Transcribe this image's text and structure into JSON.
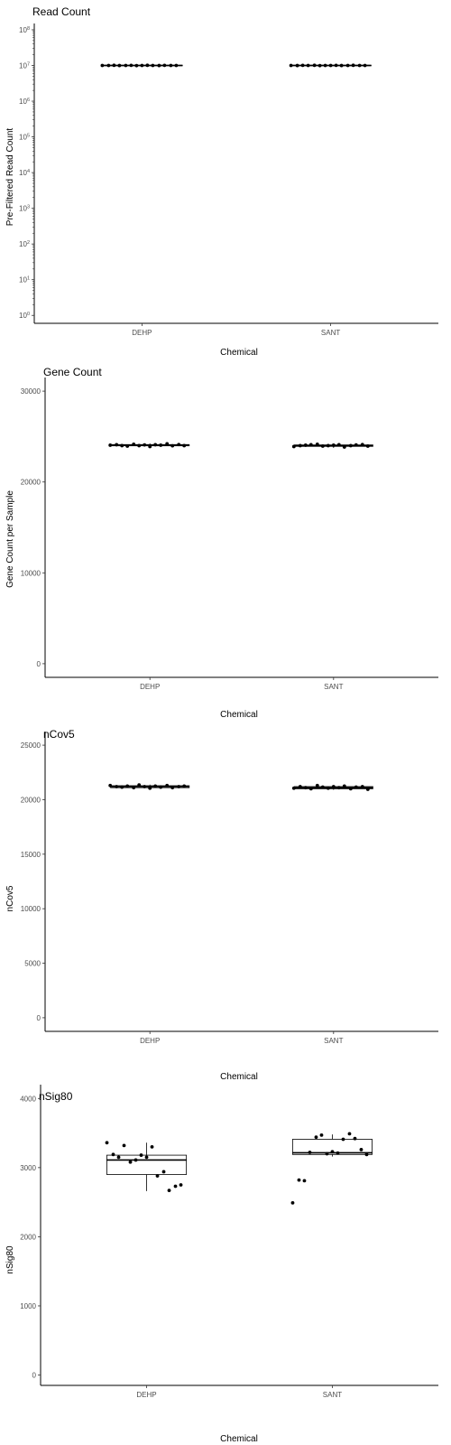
{
  "chart_data": [
    {
      "type": "box",
      "title": "Read Count",
      "xlabel": "Chemical",
      "ylabel": "Pre-Filtered Read Count",
      "categories": [
        "DEHP",
        "SANT"
      ],
      "y_scale": "log10",
      "ylim": [
        0.6,
        150000000
      ],
      "yticks": [
        1,
        10,
        100,
        1000,
        10000,
        100000,
        1000000,
        10000000,
        100000000
      ],
      "ytick_labels": [
        {
          "base": "10",
          "exp": "0"
        },
        {
          "base": "10",
          "exp": "1"
        },
        {
          "base": "10",
          "exp": "2"
        },
        {
          "base": "10",
          "exp": "3"
        },
        {
          "base": "10",
          "exp": "4"
        },
        {
          "base": "10",
          "exp": "5"
        },
        {
          "base": "10",
          "exp": "6"
        },
        {
          "base": "10",
          "exp": "7"
        },
        {
          "base": "10",
          "exp": "8"
        }
      ],
      "boxes": [
        {
          "min": 9500000,
          "q1": 9800000,
          "median": 10000000,
          "q3": 10200000,
          "max": 10500000
        },
        {
          "min": 9500000,
          "q1": 9800000,
          "median": 10000000,
          "q3": 10200000,
          "max": 10500000
        }
      ],
      "points": [
        [
          10000000,
          10000000,
          10100000,
          9950000,
          10000000,
          10050000,
          9900000,
          10000000,
          10100000,
          10000000,
          9950000,
          10050000,
          10000000,
          10000000
        ],
        [
          10000000,
          9950000,
          10050000,
          10000000,
          10100000,
          9900000,
          10000000,
          10000000,
          10050000,
          9950000,
          10000000,
          10100000,
          10000000,
          10000000
        ]
      ]
    },
    {
      "type": "box",
      "title": "Gene Count",
      "xlabel": "Chemical",
      "ylabel": "Gene Count per Sample",
      "categories": [
        "DEHP",
        "SANT"
      ],
      "ylim": [
        -1500,
        31500
      ],
      "yticks": [
        0,
        10000,
        20000,
        30000
      ],
      "ytick_labels": [
        "0",
        "10000",
        "20000",
        "30000"
      ],
      "boxes": [
        {
          "min": 23850,
          "q1": 23980,
          "median": 24050,
          "q3": 24120,
          "max": 24250
        },
        {
          "min": 23750,
          "q1": 23920,
          "median": 24000,
          "q3": 24080,
          "max": 24200
        }
      ],
      "points": [
        [
          24050,
          24100,
          24000,
          23950,
          24150,
          24000,
          24080,
          23900,
          24100,
          24050,
          24200,
          23980,
          24120,
          24000
        ],
        [
          23900,
          24000,
          24050,
          24100,
          24150,
          23950,
          24000,
          24050,
          24100,
          23850,
          24000,
          24080,
          24120,
          23950
        ]
      ]
    },
    {
      "type": "box",
      "title": "nCov5",
      "xlabel": "Chemical",
      "ylabel": "nCov5",
      "categories": [
        "DEHP",
        "SANT"
      ],
      "ylim": [
        -1250,
        26250
      ],
      "yticks": [
        0,
        5000,
        10000,
        15000,
        20000,
        25000
      ],
      "ytick_labels": [
        "0",
        "5000",
        "10000",
        "15000",
        "20000",
        "25000"
      ],
      "boxes": [
        {
          "min": 21000,
          "q1": 21100,
          "median": 21200,
          "q3": 21280,
          "max": 21380
        },
        {
          "min": 20900,
          "q1": 21000,
          "median": 21100,
          "q3": 21200,
          "max": 21300
        }
      ],
      "points": [
        [
          21300,
          21200,
          21150,
          21250,
          21100,
          21350,
          21200,
          21050,
          21250,
          21150,
          21300,
          21100,
          21200,
          21250
        ],
        [
          21050,
          21200,
          21100,
          21000,
          21300,
          21150,
          21050,
          21200,
          21100,
          21250,
          21000,
          21150,
          21200,
          20950
        ]
      ]
    },
    {
      "type": "box",
      "title": "nSig80",
      "xlabel": "Chemical",
      "ylabel": "nSig80",
      "categories": [
        "DEHP",
        "SANT"
      ],
      "ylim": [
        -150,
        4200
      ],
      "yticks": [
        0,
        1000,
        2000,
        3000,
        4000
      ],
      "ytick_labels": [
        "0",
        "1000",
        "2000",
        "3000",
        "4000"
      ],
      "boxes": [
        {
          "min": 2660,
          "q1": 2900,
          "median": 3110,
          "q3": 3180,
          "max": 3360
        },
        {
          "min": 3160,
          "q1": 3190,
          "median": 3215,
          "q3": 3410,
          "max": 3480
        }
      ],
      "points": [
        [
          3360,
          3190,
          3150,
          3320,
          3080,
          3110,
          3180,
          3150,
          3300,
          2880,
          2940,
          2670,
          2730,
          2750
        ],
        [
          2490,
          2820,
          2810,
          3220,
          3440,
          3470,
          3200,
          3230,
          3210,
          3410,
          3490,
          3420,
          3260,
          3190
        ]
      ]
    }
  ]
}
